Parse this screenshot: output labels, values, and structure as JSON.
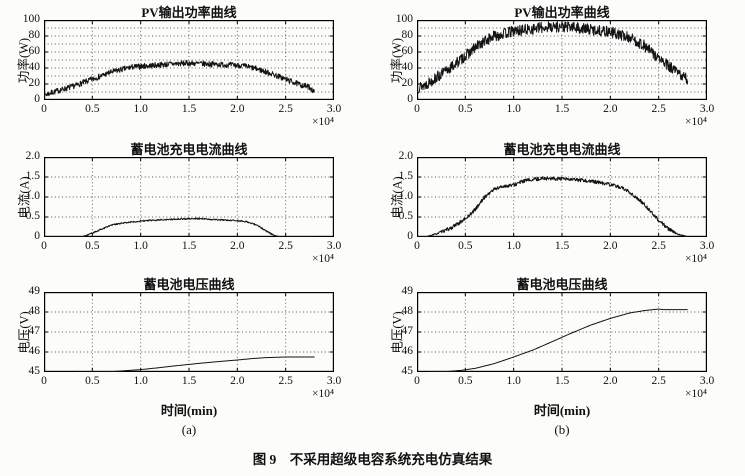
{
  "caption": "图 9　不采用超级电容系统充电仿真结果",
  "colors": {
    "line": "#141414",
    "grid": "#555555",
    "axis": "#000000",
    "background": "#fcfcfa"
  },
  "chart_data": [
    {
      "id": "pv-power-a",
      "type": "line",
      "title": "PV输出功率曲线",
      "ylabel": "功率(W)",
      "xlabel": "",
      "sublabel": "",
      "x_scale_label": "×10⁴",
      "xlim": [
        0,
        3
      ],
      "ylim": [
        0,
        100
      ],
      "xticks": [
        0,
        0.5,
        1,
        1.5,
        2,
        2.5,
        3
      ],
      "xtick_labels": [
        "0",
        "0.5",
        "1.0",
        "1.5",
        "2.0",
        "2.5",
        "3.0"
      ],
      "yticks": [
        0,
        20,
        40,
        60,
        80,
        100
      ],
      "ytick_labels": [
        "0",
        "20",
        "40",
        "60",
        "80",
        "100"
      ],
      "xgrid": [
        0.5,
        1,
        1.5,
        2,
        2.5
      ],
      "ygrid": [
        10,
        20,
        30,
        40,
        50,
        60,
        70,
        80,
        90
      ],
      "noise": 3.5,
      "noise_taper": false,
      "seed": 7,
      "x": [
        0,
        0.1,
        0.3,
        0.5,
        0.7,
        0.9,
        1.1,
        1.3,
        1.5,
        1.7,
        1.9,
        2.05,
        2.2,
        2.35,
        2.5,
        2.65,
        2.75,
        2.8
      ],
      "y": [
        6,
        10,
        17,
        26,
        35,
        41,
        43,
        45,
        46,
        45,
        44,
        43,
        39,
        33,
        26,
        19,
        16,
        9
      ]
    },
    {
      "id": "pv-power-b",
      "type": "line",
      "title": "PV输出功率曲线",
      "ylabel": "功率(W)",
      "xlabel": "",
      "sublabel": "",
      "x_scale_label": "×10⁴",
      "xlim": [
        0,
        3
      ],
      "ylim": [
        0,
        100
      ],
      "xticks": [
        0,
        0.5,
        1,
        1.5,
        2,
        2.5,
        3
      ],
      "xtick_labels": [
        "0",
        "0.5",
        "1.0",
        "1.5",
        "2.0",
        "2.5",
        "3.0"
      ],
      "yticks": [
        0,
        20,
        40,
        60,
        80,
        100
      ],
      "ytick_labels": [
        "0",
        "20",
        "40",
        "60",
        "80",
        "100"
      ],
      "xgrid": [
        0.5,
        1,
        1.5,
        2,
        2.5
      ],
      "ygrid": [
        10,
        20,
        30,
        40,
        50,
        60,
        70,
        80,
        90
      ],
      "noise": 7,
      "noise_taper": false,
      "seed": 13,
      "x": [
        0,
        0.1,
        0.3,
        0.5,
        0.65,
        0.8,
        1.0,
        1.2,
        1.4,
        1.6,
        1.8,
        2.0,
        2.2,
        2.35,
        2.5,
        2.65,
        2.8
      ],
      "y": [
        15,
        20,
        36,
        55,
        70,
        80,
        86,
        89,
        92,
        91,
        88,
        85,
        78,
        68,
        52,
        38,
        25
      ]
    },
    {
      "id": "battery-current-a",
      "type": "line",
      "title": "蓄电池充电电流曲线",
      "ylabel": "电流(A)",
      "xlabel": "",
      "sublabel": "",
      "x_scale_label": "×10⁴",
      "xlim": [
        0,
        3
      ],
      "ylim": [
        0,
        2
      ],
      "xticks": [
        0,
        0.5,
        1,
        1.5,
        2,
        2.5,
        3
      ],
      "xtick_labels": [
        "0",
        "0.5",
        "1.0",
        "1.5",
        "2.0",
        "2.5",
        "3.0"
      ],
      "yticks": [
        0,
        0.5,
        1,
        1.5,
        2
      ],
      "ytick_labels": [
        "0",
        "0.5",
        "1.0",
        "1.5",
        "2.0"
      ],
      "xgrid": [
        0.5,
        1,
        1.5,
        2,
        2.5
      ],
      "ygrid": [
        0.5,
        1,
        1.5
      ],
      "noise": 0.018,
      "noise_taper": true,
      "seed": 21,
      "x": [
        0,
        0.38,
        0.45,
        0.55,
        0.7,
        0.85,
        1.0,
        1.2,
        1.4,
        1.6,
        1.8,
        2.0,
        2.1,
        2.2,
        2.3,
        2.38,
        2.45,
        2.8
      ],
      "y": [
        0,
        0,
        0.05,
        0.15,
        0.3,
        0.36,
        0.4,
        0.43,
        0.45,
        0.46,
        0.43,
        0.41,
        0.38,
        0.3,
        0.15,
        0.04,
        0,
        0
      ]
    },
    {
      "id": "battery-current-b",
      "type": "line",
      "title": "蓄电池充电电流曲线",
      "ylabel": "电流(A)",
      "xlabel": "",
      "sublabel": "",
      "x_scale_label": "×10⁴",
      "xlim": [
        0,
        3
      ],
      "ylim": [
        0,
        2
      ],
      "xticks": [
        0,
        0.5,
        1,
        1.5,
        2,
        2.5,
        3
      ],
      "xtick_labels": [
        "0",
        "0.5",
        "1.0",
        "1.5",
        "2.0",
        "2.5",
        "3.0"
      ],
      "yticks": [
        0,
        0.5,
        1,
        1.5,
        2
      ],
      "ytick_labels": [
        "0",
        "0.5",
        "1.0",
        "1.5",
        "2.0"
      ],
      "xgrid": [
        0.5,
        1,
        1.5,
        2,
        2.5
      ],
      "ygrid": [
        0.5,
        1,
        1.5
      ],
      "noise": 0.045,
      "noise_taper": true,
      "seed": 33,
      "x": [
        0,
        0.1,
        0.2,
        0.35,
        0.5,
        0.6,
        0.7,
        0.8,
        0.9,
        1.0,
        1.1,
        1.3,
        1.5,
        1.7,
        1.9,
        2.1,
        2.2,
        2.35,
        2.5,
        2.6,
        2.7,
        2.8
      ],
      "y": [
        0,
        0.01,
        0.08,
        0.22,
        0.45,
        0.68,
        1.0,
        1.2,
        1.27,
        1.3,
        1.4,
        1.47,
        1.45,
        1.42,
        1.36,
        1.25,
        1.12,
        0.82,
        0.42,
        0.2,
        0.07,
        0.01
      ]
    },
    {
      "id": "battery-voltage-a",
      "type": "line",
      "title": "蓄电池电压曲线",
      "ylabel": "电压(V)",
      "xlabel": "时间(min)",
      "sublabel": "(a)",
      "x_scale_label": "×10⁴",
      "xlim": [
        0,
        3
      ],
      "ylim": [
        45,
        49
      ],
      "xticks": [
        0,
        0.5,
        1,
        1.5,
        2,
        2.5,
        3
      ],
      "xtick_labels": [
        "0",
        "0.5",
        "1.0",
        "1.5",
        "2.0",
        "2.5",
        "3.0"
      ],
      "yticks": [
        45,
        46,
        47,
        48,
        49
      ],
      "ytick_labels": [
        "45",
        "46",
        "47",
        "48",
        "49"
      ],
      "xgrid": [
        0.5,
        1,
        1.5,
        2,
        2.5
      ],
      "ygrid": [
        46,
        47,
        48
      ],
      "noise": 0,
      "noise_taper": false,
      "seed": 41,
      "x": [
        0.35,
        0.55,
        0.7,
        0.85,
        1.0,
        1.2,
        1.4,
        1.6,
        1.8,
        2.0,
        2.15,
        2.3,
        2.5,
        2.8
      ],
      "y": [
        45.0,
        45.0,
        45.02,
        45.07,
        45.12,
        45.22,
        45.33,
        45.43,
        45.52,
        45.6,
        45.67,
        45.72,
        45.75,
        45.75
      ]
    },
    {
      "id": "battery-voltage-b",
      "type": "line",
      "title": "蓄电池电压曲线",
      "ylabel": "电压(V)",
      "xlabel": "时间(min)",
      "sublabel": "(b)",
      "x_scale_label": "×10⁴",
      "xlim": [
        0,
        3
      ],
      "ylim": [
        45,
        49
      ],
      "xticks": [
        0,
        0.5,
        1,
        1.5,
        2,
        2.5,
        3
      ],
      "xtick_labels": [
        "0",
        "0.5",
        "1.0",
        "1.5",
        "2.0",
        "2.5",
        "3.0"
      ],
      "yticks": [
        45,
        46,
        47,
        48,
        49
      ],
      "ytick_labels": [
        "45",
        "46",
        "47",
        "48",
        "49"
      ],
      "xgrid": [
        0.5,
        1,
        1.5,
        2,
        2.5
      ],
      "ygrid": [
        46,
        47,
        48
      ],
      "noise": 0,
      "noise_taper": false,
      "seed": 55,
      "x": [
        0.1,
        0.3,
        0.45,
        0.6,
        0.8,
        1.0,
        1.2,
        1.4,
        1.6,
        1.8,
        2.0,
        2.2,
        2.35,
        2.5,
        2.55,
        2.8
      ],
      "y": [
        45.0,
        45.02,
        45.08,
        45.18,
        45.42,
        45.75,
        46.1,
        46.52,
        46.95,
        47.35,
        47.68,
        47.95,
        48.07,
        48.15,
        48.12,
        48.12
      ]
    }
  ]
}
